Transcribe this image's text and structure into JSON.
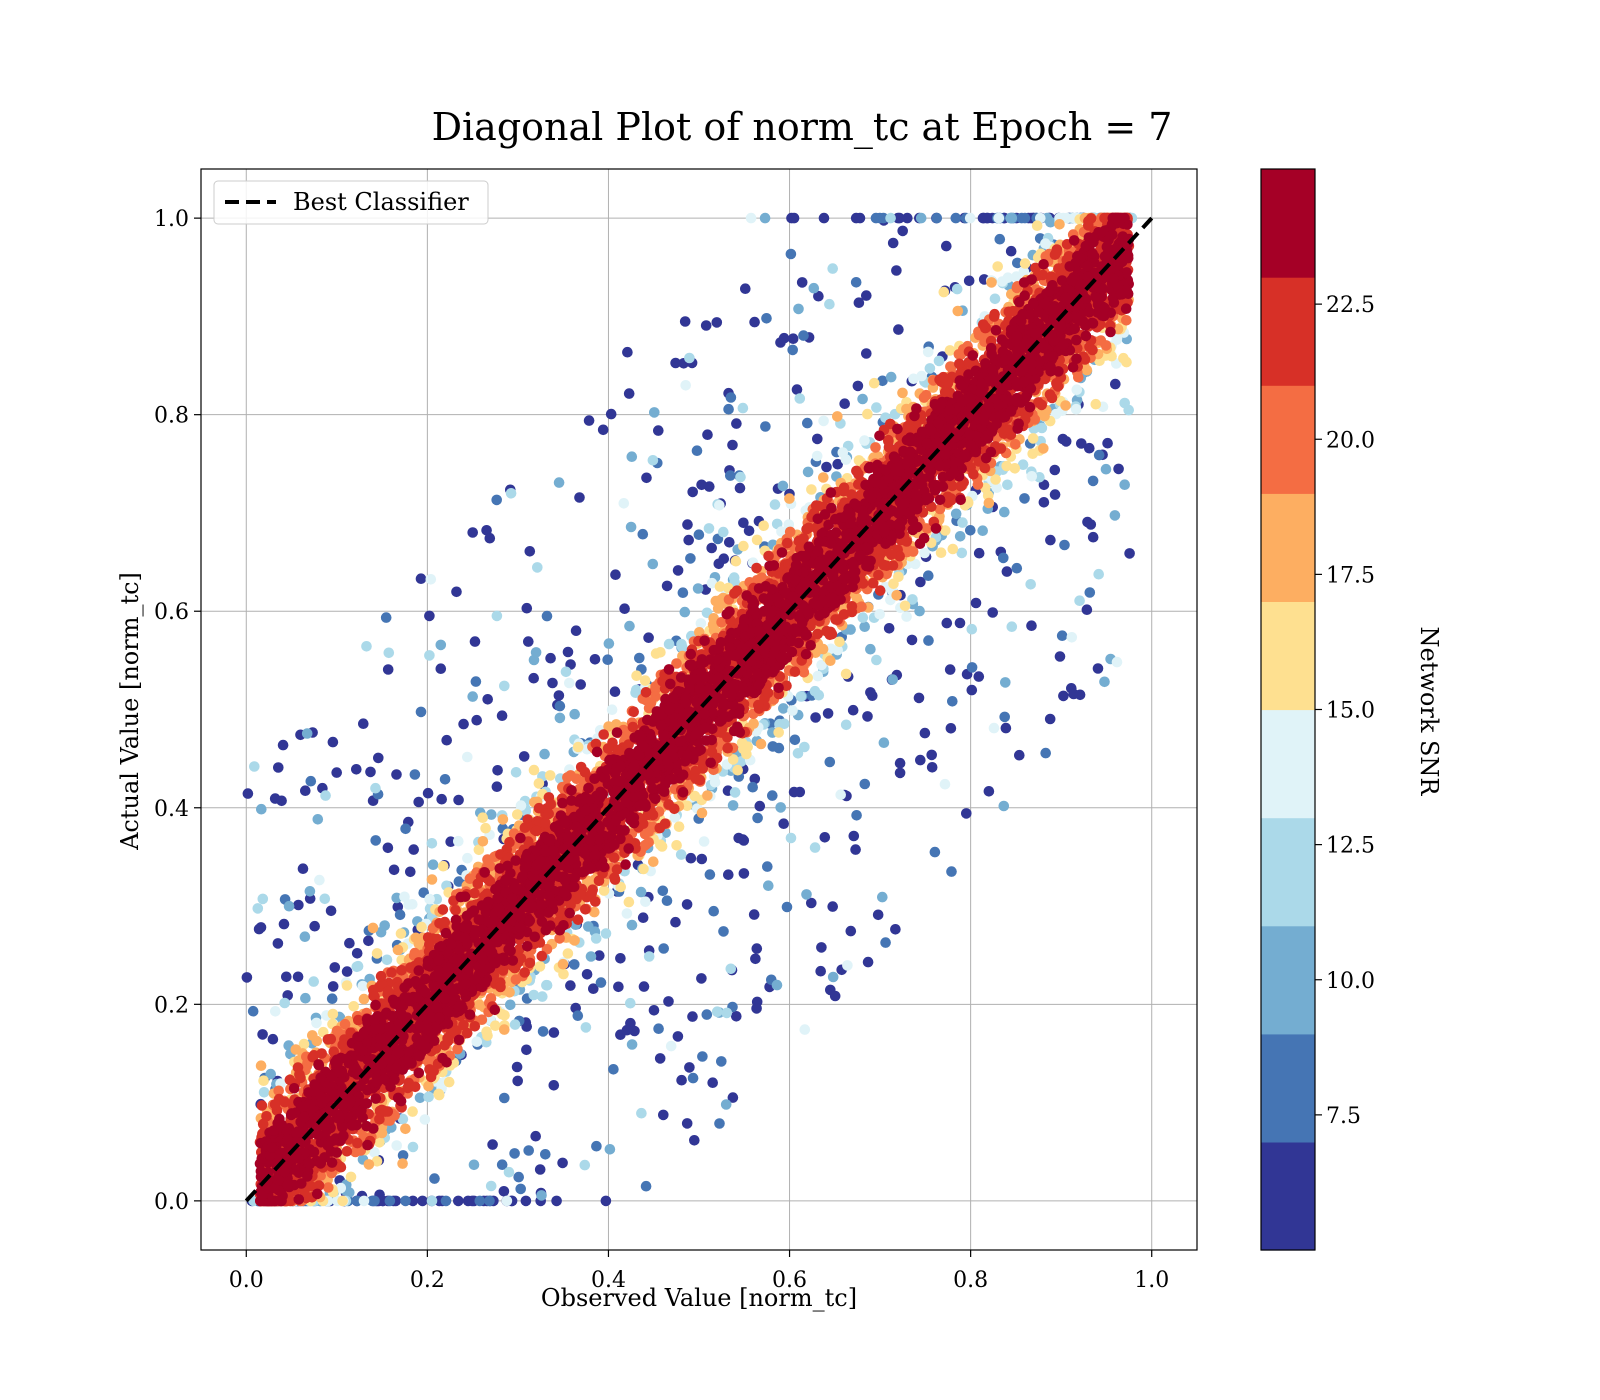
{
  "chart_data": {
    "type": "scatter",
    "title": "Diagonal Plot of norm_tc at Epoch = 7",
    "xlabel": "Observed Value [norm_tc]",
    "ylabel": "Actual Value [norm_tc]",
    "xlim": [
      -0.05,
      1.05
    ],
    "ylim": [
      -0.05,
      1.05
    ],
    "xticks": [
      "0.0",
      "0.2",
      "0.4",
      "0.6",
      "0.8",
      "1.0"
    ],
    "yticks": [
      "0.0",
      "0.2",
      "0.4",
      "0.6",
      "0.8",
      "1.0"
    ],
    "grid": true,
    "legend": {
      "placement": "top-left",
      "entries": [
        {
          "label": "Best Classifier",
          "style": "dashed",
          "color": "#000000"
        }
      ]
    },
    "reference_line": {
      "name": "Best Classifier",
      "x": [
        0.0,
        1.0
      ],
      "y": [
        0.0,
        1.0
      ]
    },
    "colorbar": {
      "label": "Network SNR",
      "range": [
        5.0,
        25.0
      ],
      "ticks": [
        "7.5",
        "10.0",
        "12.5",
        "15.0",
        "17.5",
        "20.0",
        "22.5"
      ],
      "tick_values": [
        7.5,
        10.0,
        12.5,
        15.0,
        17.5,
        20.0,
        22.5
      ],
      "colors": [
        "#313695",
        "#4575b4",
        "#74add1",
        "#abd9e9",
        "#e0f3f8",
        "#fee090",
        "#fdae61",
        "#f46d43",
        "#d73027",
        "#a50026"
      ]
    },
    "points": {
      "approx_count": 9000,
      "core_spread_near_diagonal": 0.045,
      "low_snr_outlier_fraction": 0.08,
      "snr_range": [
        5.0,
        25.0
      ]
    }
  }
}
